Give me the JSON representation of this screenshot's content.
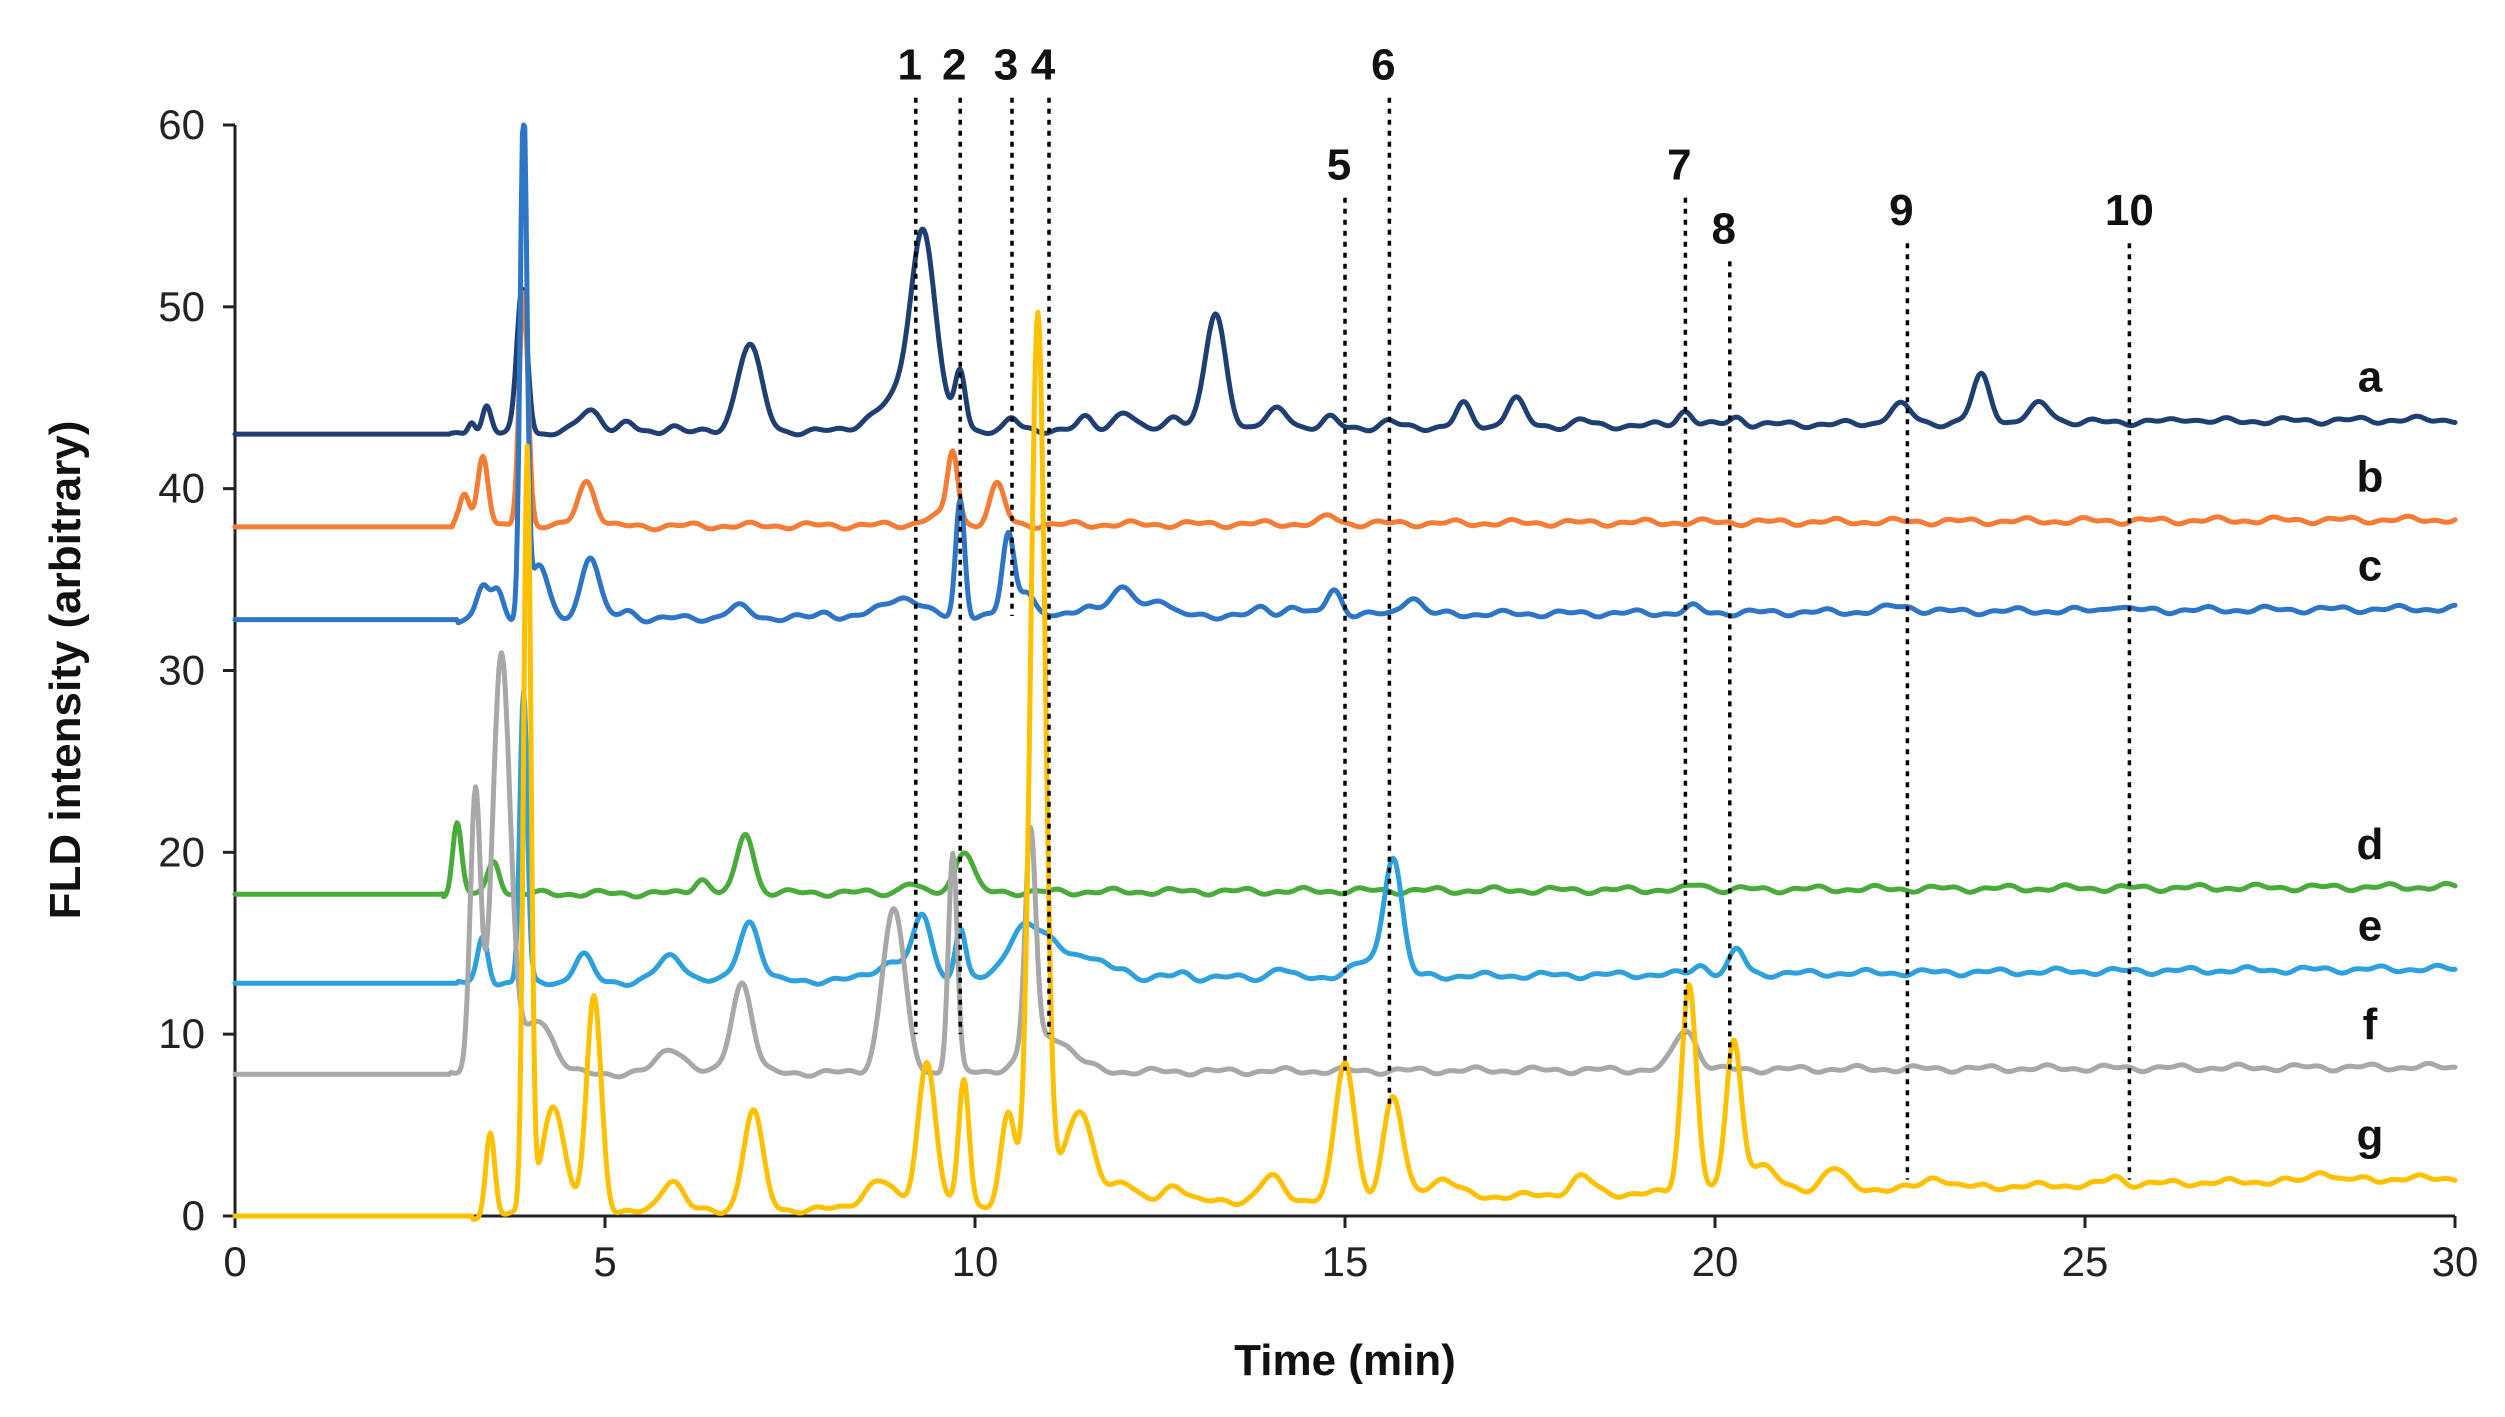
{
  "chart_data": {
    "type": "line",
    "xlabel": "Time (min)",
    "ylabel": "FLD intensity (arbitrary)",
    "xlim": [
      0,
      30
    ],
    "ylim": [
      0,
      60
    ],
    "x_ticks": [
      0,
      5,
      10,
      15,
      20,
      25,
      30
    ],
    "y_ticks": [
      0,
      10,
      20,
      30,
      40,
      50,
      60
    ],
    "peak_markers": [
      {
        "label": "1",
        "time": 9.2,
        "top": 61.5,
        "bottom": 10
      },
      {
        "label": "2",
        "time": 9.8,
        "top": 61.5,
        "bottom": 10
      },
      {
        "label": "3",
        "time": 10.5,
        "top": 61.5,
        "bottom": 33
      },
      {
        "label": "4",
        "time": 11.0,
        "top": 61.5,
        "bottom": 10
      },
      {
        "label": "5",
        "time": 15.0,
        "top": 56,
        "bottom": 8
      },
      {
        "label": "6",
        "time": 15.6,
        "top": 61.5,
        "bottom": 6
      },
      {
        "label": "7",
        "time": 19.6,
        "top": 56,
        "bottom": 10
      },
      {
        "label": "8",
        "time": 20.2,
        "top": 52.5,
        "bottom": 8
      },
      {
        "label": "9",
        "time": 22.6,
        "top": 53.5,
        "bottom": 2
      },
      {
        "label": "10",
        "time": 25.6,
        "top": 53.5,
        "bottom": 2
      }
    ],
    "series": [
      {
        "name": "a",
        "color": "#1f3f73",
        "baseline": 43.0,
        "end_baseline": 43.8,
        "start": 2.9,
        "peaks": [
          [
            3.2,
            0.8,
            0.05
          ],
          [
            3.4,
            1.5,
            0.06
          ],
          [
            3.88,
            8,
            0.07
          ],
          [
            4.8,
            1.3,
            0.15
          ],
          [
            5.3,
            0.5,
            0.1
          ],
          [
            5.9,
            0.4,
            0.1
          ],
          [
            6.95,
            4.8,
            0.16
          ],
          [
            8.9,
            1.5,
            0.3
          ],
          [
            9.3,
            10.5,
            0.17
          ],
          [
            9.8,
            3.2,
            0.07
          ],
          [
            10.5,
            0.6,
            0.08
          ],
          [
            11.5,
            0.6,
            0.1
          ],
          [
            12.0,
            1.0,
            0.12
          ],
          [
            12.7,
            0.8,
            0.1
          ],
          [
            13.25,
            6.2,
            0.14
          ],
          [
            14.1,
            1.0,
            0.15
          ],
          [
            14.8,
            0.5,
            0.1
          ],
          [
            15.6,
            0.3,
            0.1
          ],
          [
            16.6,
            1.2,
            0.1
          ],
          [
            17.3,
            1.5,
            0.12
          ],
          [
            18.2,
            0.3,
            0.1
          ],
          [
            19.6,
            0.8,
            0.1
          ],
          [
            20.3,
            0.4,
            0.1
          ],
          [
            22.5,
            1.0,
            0.15
          ],
          [
            23.6,
            2.6,
            0.12
          ],
          [
            24.4,
            1.0,
            0.15
          ],
          [
            26.4,
            0.2,
            0.1
          ]
        ]
      },
      {
        "name": "b",
        "color": "#f47c35",
        "baseline": 37.9,
        "end_baseline": 38.3,
        "start": 3.0,
        "peaks": [
          [
            3.1,
            2.0,
            0.07
          ],
          [
            3.35,
            3.8,
            0.07
          ],
          [
            3.9,
            13,
            0.06
          ],
          [
            4.75,
            2.5,
            0.12
          ],
          [
            9.5,
            0.5,
            0.2
          ],
          [
            9.7,
            3.8,
            0.07
          ],
          [
            10.3,
            2.2,
            0.1
          ],
          [
            14.8,
            0.4,
            0.1
          ]
        ]
      },
      {
        "name": "c",
        "color": "#2e75c6",
        "baseline": 32.8,
        "end_baseline": 33.4,
        "start": 3.0,
        "peaks": [
          [
            3.35,
            1.8,
            0.08
          ],
          [
            3.55,
            1.5,
            0.08
          ],
          [
            3.9,
            28,
            0.045
          ],
          [
            4.1,
            3,
            0.12
          ],
          [
            4.8,
            3.5,
            0.12
          ],
          [
            5.3,
            0.4,
            0.1
          ],
          [
            6.8,
            0.6,
            0.15
          ],
          [
            8.0,
            0.3,
            0.1
          ],
          [
            9.0,
            1.1,
            0.25
          ],
          [
            9.8,
            6.5,
            0.06
          ],
          [
            10.45,
            4.5,
            0.08
          ],
          [
            10.7,
            1.5,
            0.1
          ],
          [
            11.5,
            0.6,
            0.1
          ],
          [
            12.0,
            1.4,
            0.2
          ],
          [
            12.5,
            0.9,
            0.12
          ],
          [
            13.9,
            0.4,
            0.1
          ],
          [
            14.3,
            0.5,
            0.1
          ],
          [
            14.85,
            1.4,
            0.1
          ],
          [
            15.9,
            1.0,
            0.12
          ],
          [
            19.7,
            0.3,
            0.1
          ],
          [
            22.5,
            0.3,
            0.2
          ],
          [
            25.4,
            0.3,
            0.1
          ]
        ]
      },
      {
        "name": "d",
        "color": "#4aab3c",
        "baseline": 17.7,
        "end_baseline": 18.1,
        "start": 2.8,
        "peaks": [
          [
            3.0,
            3.9,
            0.06
          ],
          [
            3.5,
            1.8,
            0.08
          ],
          [
            6.3,
            0.8,
            0.1
          ],
          [
            6.9,
            3.3,
            0.11
          ],
          [
            9.1,
            0.5,
            0.1
          ],
          [
            9.85,
            2.3,
            0.12
          ],
          [
            19.8,
            0.3,
            0.1
          ]
        ]
      },
      {
        "name": "e",
        "color": "#2ea0dc",
        "baseline": 12.8,
        "end_baseline": 13.6,
        "start": 3.0,
        "peaks": [
          [
            3.35,
            2.5,
            0.07
          ],
          [
            3.9,
            16,
            0.05
          ],
          [
            4.7,
            1.5,
            0.12
          ],
          [
            5.9,
            1.4,
            0.18
          ],
          [
            6.95,
            3.3,
            0.14
          ],
          [
            8.9,
            1.0,
            0.25
          ],
          [
            9.3,
            3.3,
            0.12
          ],
          [
            9.8,
            2.8,
            0.07
          ],
          [
            10.6,
            2.0,
            0.2
          ],
          [
            11.0,
            2.0,
            0.3
          ],
          [
            11.6,
            0.8,
            0.2
          ],
          [
            12.0,
            0.5,
            0.1
          ],
          [
            12.8,
            0.3,
            0.1
          ],
          [
            14.1,
            0.5,
            0.1
          ],
          [
            15.65,
            6.5,
            0.12
          ],
          [
            15.3,
            0.8,
            0.2
          ],
          [
            19.8,
            0.5,
            0.1
          ],
          [
            20.3,
            1.3,
            0.1
          ]
        ]
      },
      {
        "name": "f",
        "color": "#a8a8a8",
        "baseline": 7.8,
        "end_baseline": 8.2,
        "start": 2.9,
        "peaks": [
          [
            3.25,
            15.5,
            0.07
          ],
          [
            3.6,
            23,
            0.12
          ],
          [
            4.1,
            3,
            0.2
          ],
          [
            5.9,
            1.4,
            0.18
          ],
          [
            6.85,
            5,
            0.14
          ],
          [
            8.9,
            9,
            0.15
          ],
          [
            9.7,
            12,
            0.06
          ],
          [
            10.75,
            12,
            0.07
          ],
          [
            11.0,
            2,
            0.3
          ],
          [
            19.6,
            2.2,
            0.15
          ]
        ]
      },
      {
        "name": "g",
        "color": "#ffc000",
        "baseline": 0.0,
        "end_baseline": 2.1,
        "start": 3.2,
        "peaks": [
          [
            3.45,
            4.5,
            0.06
          ],
          [
            3.95,
            42,
            0.05
          ],
          [
            4.3,
            6,
            0.15
          ],
          [
            4.85,
            12,
            0.1
          ],
          [
            5.9,
            1.8,
            0.15
          ],
          [
            7.0,
            5.5,
            0.13
          ],
          [
            8.7,
            1.5,
            0.2
          ],
          [
            9.35,
            8,
            0.12
          ],
          [
            9.85,
            7,
            0.07
          ],
          [
            10.45,
            5,
            0.1
          ],
          [
            10.85,
            49,
            0.1
          ],
          [
            11.4,
            5,
            0.2
          ],
          [
            12.0,
            1.2,
            0.15
          ],
          [
            12.7,
            1.0,
            0.15
          ],
          [
            14.0,
            1.3,
            0.15
          ],
          [
            15.0,
            7.5,
            0.13
          ],
          [
            15.65,
            5.5,
            0.13
          ],
          [
            16.3,
            1.0,
            0.2
          ],
          [
            18.2,
            1.0,
            0.15
          ],
          [
            19.65,
            11.5,
            0.1
          ],
          [
            20.25,
            8,
            0.1
          ],
          [
            20.6,
            1.5,
            0.2
          ],
          [
            21.6,
            1.2,
            0.15
          ],
          [
            23.0,
            0.6,
            0.15
          ],
          [
            25.4,
            0.4,
            0.1
          ],
          [
            28.2,
            0.6,
            0.1
          ]
        ]
      }
    ]
  }
}
